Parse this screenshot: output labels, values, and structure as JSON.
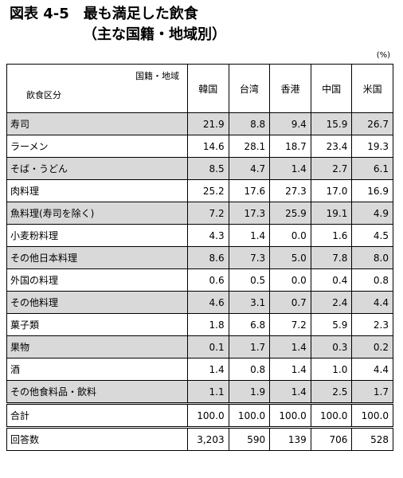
{
  "figure": {
    "title": "図表 4-5　最も満足した飲食",
    "subtitle": "（主な国籍・地域別）",
    "unit": "(%)"
  },
  "chart_data": {
    "type": "table",
    "corner_top": "国籍・地域",
    "corner_bottom": "飲食区分",
    "columns": [
      "韓国",
      "台湾",
      "香港",
      "中国",
      "米国"
    ],
    "rows": [
      {
        "label": "寿司",
        "values": [
          "21.9",
          "8.8",
          "9.4",
          "15.9",
          "26.7"
        ],
        "shaded": true
      },
      {
        "label": "ラーメン",
        "values": [
          "14.6",
          "28.1",
          "18.7",
          "23.4",
          "19.3"
        ],
        "shaded": false
      },
      {
        "label": "そば・うどん",
        "values": [
          "8.5",
          "4.7",
          "1.4",
          "2.7",
          "6.1"
        ],
        "shaded": true
      },
      {
        "label": "肉料理",
        "values": [
          "25.2",
          "17.6",
          "27.3",
          "17.0",
          "16.9"
        ],
        "shaded": false
      },
      {
        "label": "魚料理(寿司を除く)",
        "values": [
          "7.2",
          "17.3",
          "25.9",
          "19.1",
          "4.9"
        ],
        "shaded": true
      },
      {
        "label": "小麦粉料理",
        "values": [
          "4.3",
          "1.4",
          "0.0",
          "1.6",
          "4.5"
        ],
        "shaded": false
      },
      {
        "label": "その他日本料理",
        "values": [
          "8.6",
          "7.3",
          "5.0",
          "7.8",
          "8.0"
        ],
        "shaded": true
      },
      {
        "label": "外国の料理",
        "values": [
          "0.6",
          "0.5",
          "0.0",
          "0.4",
          "0.8"
        ],
        "shaded": false
      },
      {
        "label": "その他料理",
        "values": [
          "4.6",
          "3.1",
          "0.7",
          "2.4",
          "4.4"
        ],
        "shaded": true
      },
      {
        "label": "菓子類",
        "values": [
          "1.8",
          "6.8",
          "7.2",
          "5.9",
          "2.3"
        ],
        "shaded": false
      },
      {
        "label": "果物",
        "values": [
          "0.1",
          "1.7",
          "1.4",
          "0.3",
          "0.2"
        ],
        "shaded": true
      },
      {
        "label": "酒",
        "values": [
          "1.4",
          "0.8",
          "1.4",
          "1.0",
          "4.4"
        ],
        "shaded": false
      },
      {
        "label": "その他食料品・飲料",
        "values": [
          "1.1",
          "1.9",
          "1.4",
          "2.5",
          "1.7"
        ],
        "shaded": true
      }
    ],
    "totals": [
      {
        "label": "合計",
        "values": [
          "100.0",
          "100.0",
          "100.0",
          "100.0",
          "100.0"
        ]
      },
      {
        "label": "回答数",
        "values": [
          "3,203",
          "590",
          "139",
          "706",
          "528"
        ]
      }
    ]
  }
}
